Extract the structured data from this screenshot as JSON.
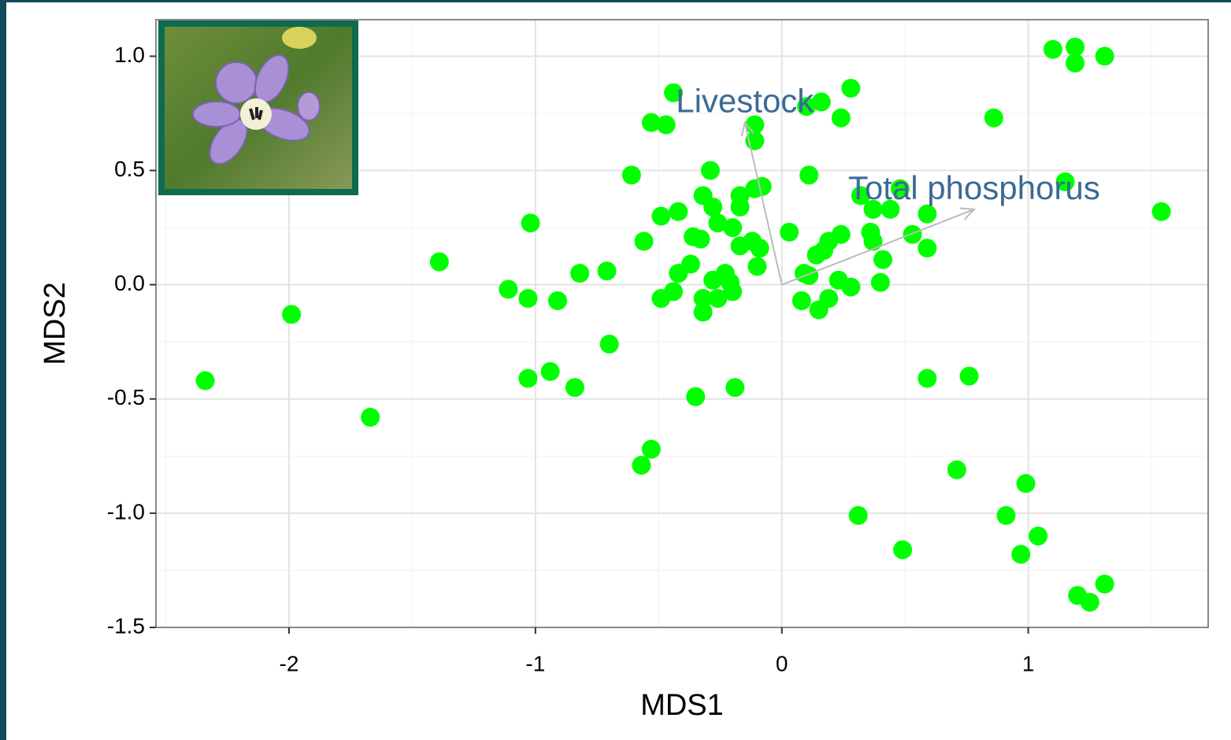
{
  "chart_data": {
    "type": "scatter",
    "x_label": "MDS1",
    "y_label": "MDS2",
    "xlim": [
      -2.54,
      1.73
    ],
    "ylim": [
      -1.5,
      1.16
    ],
    "xticks": [
      -2,
      -1,
      0,
      1
    ],
    "yticks": [
      {
        "value": 1.0,
        "label": "1.0"
      },
      0.5,
      {
        "value": 0.0,
        "label": "0.0"
      },
      -0.5,
      {
        "value": -1.0,
        "label": "-1.0"
      },
      -1.5
    ],
    "grid": true,
    "color": "#00ff00",
    "x": [
      -2.34,
      -1.99,
      -1.67,
      -1.39,
      -1.02,
      -1.11,
      -1.03,
      -0.91,
      -0.82,
      -0.71,
      -0.7,
      -1.03,
      -0.94,
      -0.84,
      -0.61,
      -0.56,
      -0.53,
      -0.57,
      -0.44,
      -0.53,
      -0.47,
      -0.49,
      -0.42,
      -0.49,
      -0.44,
      -0.42,
      -0.37,
      -0.36,
      -0.33,
      -0.32,
      -0.29,
      -0.28,
      -0.35,
      -0.19,
      -0.26,
      -0.2,
      -0.17,
      -0.17,
      -0.11,
      -0.08,
      -0.11,
      -0.11,
      -0.12,
      -0.09,
      -0.17,
      -0.1,
      -0.28,
      -0.23,
      -0.21,
      -0.32,
      -0.32,
      -0.26,
      -0.2,
      -0.23,
      0.03,
      0.11,
      0.1,
      0.16,
      0.28,
      0.24,
      0.09,
      0.11,
      0.14,
      0.17,
      0.19,
      0.24,
      0.08,
      0.15,
      0.19,
      0.23,
      0.28,
      0.32,
      0.37,
      0.44,
      0.48,
      0.36,
      0.37,
      0.41,
      0.4,
      0.53,
      0.59,
      0.59,
      0.31,
      0.49,
      0.59,
      0.76,
      0.71,
      0.86,
      0.91,
      0.99,
      1.04,
      0.97,
      1.1,
      1.19,
      1.19,
      1.31,
      1.15,
      1.54,
      1.2,
      1.25,
      1.31
    ],
    "y": [
      -0.42,
      -0.13,
      -0.58,
      0.1,
      0.27,
      -0.02,
      -0.06,
      -0.07,
      0.05,
      0.06,
      -0.26,
      -0.41,
      -0.38,
      -0.45,
      0.48,
      0.19,
      -0.72,
      -0.79,
      0.84,
      0.71,
      0.7,
      0.3,
      0.32,
      -0.06,
      -0.03,
      0.05,
      0.09,
      0.21,
      0.2,
      0.39,
      0.5,
      0.34,
      -0.49,
      -0.45,
      0.27,
      0.25,
      0.34,
      0.39,
      0.42,
      0.43,
      0.7,
      0.63,
      0.19,
      0.16,
      0.17,
      0.08,
      0.02,
      0.04,
      0.01,
      -0.06,
      -0.12,
      -0.06,
      -0.03,
      0.05,
      0.23,
      0.48,
      0.78,
      0.8,
      0.86,
      0.73,
      0.05,
      0.04,
      0.13,
      0.15,
      0.19,
      0.22,
      -0.07,
      -0.11,
      -0.06,
      0.02,
      -0.01,
      0.39,
      0.33,
      0.33,
      0.42,
      0.23,
      0.19,
      0.11,
      0.01,
      0.22,
      0.16,
      0.31,
      -1.01,
      -1.16,
      -0.41,
      -0.4,
      -0.81,
      0.73,
      -1.01,
      -0.87,
      -1.1,
      -1.18,
      1.03,
      1.04,
      0.97,
      1.0,
      0.45,
      0.32,
      -1.36,
      -1.39,
      -1.31
    ],
    "vectors": [
      {
        "name": "Livestock",
        "x": -0.15,
        "y": 0.71
      },
      {
        "name": "Total phosphorus",
        "x": 0.78,
        "y": 0.33
      }
    ]
  }
}
